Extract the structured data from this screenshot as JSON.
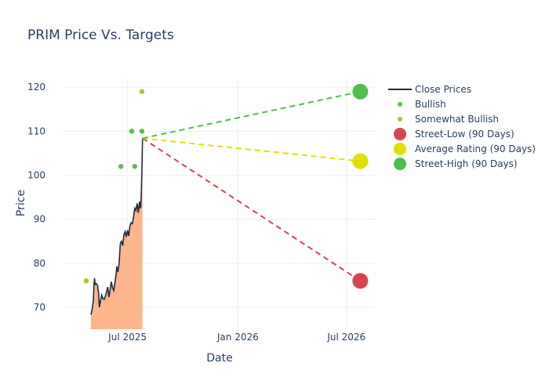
{
  "chart_data": {
    "type": "line",
    "title": "PRIM Price Vs. Targets",
    "xlabel": "Date",
    "ylabel": "Price",
    "x_range": [
      "2025-03-15",
      "2026-08-20"
    ],
    "ylim": [
      65,
      122
    ],
    "x_ticks": [
      {
        "date": "2025-07-01",
        "label": "Jul 2025"
      },
      {
        "date": "2026-01-01",
        "label": "Jan 2026"
      },
      {
        "date": "2026-07-01",
        "label": "Jul 2026"
      }
    ],
    "y_ticks": [
      70,
      80,
      90,
      100,
      110,
      120
    ],
    "grid": true,
    "legend_position": "right",
    "series": [
      {
        "name": "Close Prices",
        "kind": "line-area",
        "color": "#1f2d3d",
        "fill": "#fdb58c",
        "points": [
          [
            "2025-05-01",
            68.3
          ],
          [
            "2025-05-03",
            69.5
          ],
          [
            "2025-05-05",
            71.5
          ],
          [
            "2025-05-06",
            75.0
          ],
          [
            "2025-05-07",
            76.6
          ],
          [
            "2025-05-08",
            75.2
          ],
          [
            "2025-05-10",
            75.4
          ],
          [
            "2025-05-12",
            75.0
          ],
          [
            "2025-05-14",
            73.0
          ],
          [
            "2025-05-15",
            70.0
          ],
          [
            "2025-05-17",
            71.5
          ],
          [
            "2025-05-19",
            72.8
          ],
          [
            "2025-05-21",
            72.0
          ],
          [
            "2025-05-23",
            71.8
          ],
          [
            "2025-05-25",
            72.5
          ],
          [
            "2025-05-27",
            73.5
          ],
          [
            "2025-05-29",
            74.6
          ],
          [
            "2025-05-31",
            72.3
          ],
          [
            "2025-06-02",
            74.0
          ],
          [
            "2025-06-04",
            75.8
          ],
          [
            "2025-06-06",
            74.5
          ],
          [
            "2025-06-08",
            73.8
          ],
          [
            "2025-06-10",
            75.6
          ],
          [
            "2025-06-12",
            77.5
          ],
          [
            "2025-06-13",
            79.3
          ],
          [
            "2025-06-15",
            78.0
          ],
          [
            "2025-06-17",
            80.0
          ],
          [
            "2025-06-19",
            84.5
          ],
          [
            "2025-06-21",
            85.0
          ],
          [
            "2025-06-23",
            84.0
          ],
          [
            "2025-06-25",
            86.5
          ],
          [
            "2025-06-27",
            87.2
          ],
          [
            "2025-06-29",
            86.0
          ],
          [
            "2025-07-01",
            87.5
          ],
          [
            "2025-07-03",
            86.2
          ],
          [
            "2025-07-05",
            88.5
          ],
          [
            "2025-07-07",
            89.2
          ],
          [
            "2025-07-09",
            89.0
          ],
          [
            "2025-07-11",
            90.5
          ],
          [
            "2025-07-13",
            92.5
          ],
          [
            "2025-07-15",
            92.0
          ],
          [
            "2025-07-17",
            93.6
          ],
          [
            "2025-07-19",
            91.5
          ],
          [
            "2025-07-21",
            94.0
          ],
          [
            "2025-07-22",
            93.0
          ],
          [
            "2025-07-23",
            92.5
          ],
          [
            "2025-07-24",
            96.0
          ],
          [
            "2025-07-25",
            101.0
          ],
          [
            "2025-07-26",
            108.4
          ]
        ]
      },
      {
        "name": "Bullish",
        "kind": "scatter",
        "color": "#5cbf4a",
        "points": [
          [
            "2025-06-20",
            102
          ],
          [
            "2025-07-08",
            110
          ],
          [
            "2025-07-13",
            102
          ],
          [
            "2025-07-25",
            110
          ]
        ]
      },
      {
        "name": "Somewhat Bullish",
        "kind": "scatter",
        "color": "#9acd32",
        "points": [
          [
            "2025-04-23",
            76
          ],
          [
            "2025-07-25",
            119
          ]
        ]
      },
      {
        "name": "Street-Low (90 Days)",
        "kind": "target",
        "color": "#d64550",
        "from": [
          "2025-07-26",
          108.4
        ],
        "to": [
          "2026-07-24",
          76
        ]
      },
      {
        "name": "Average Rating (90 Days)",
        "kind": "target",
        "color": "#e0e000",
        "from": [
          "2025-07-26",
          108.4
        ],
        "to": [
          "2026-07-24",
          103.2
        ]
      },
      {
        "name": "Street-High (90 Days)",
        "kind": "target",
        "color": "#4dbf4d",
        "from": [
          "2025-07-26",
          108.4
        ],
        "to": [
          "2026-07-24",
          119
        ]
      }
    ]
  }
}
